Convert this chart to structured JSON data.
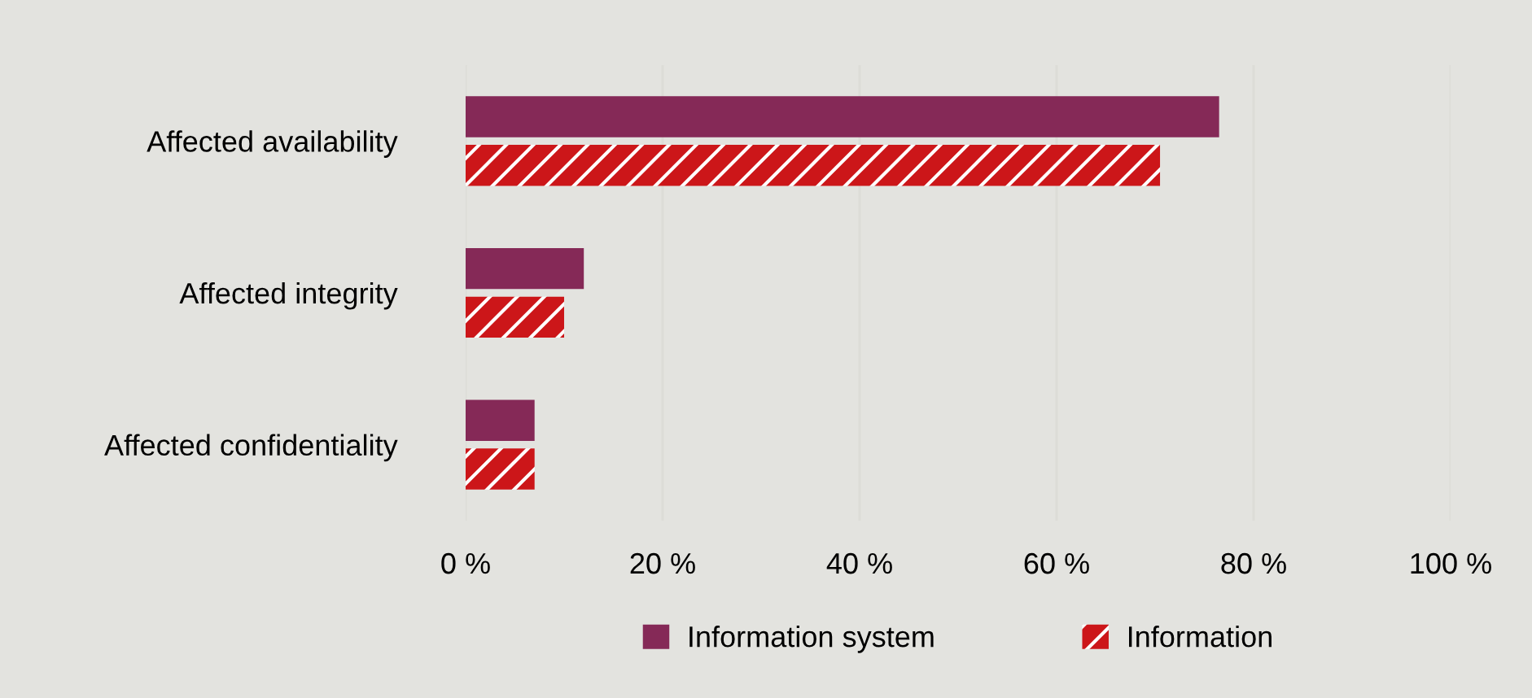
{
  "chart_data": {
    "type": "bar",
    "orientation": "horizontal",
    "categories": [
      "Affected availability",
      "Affected integrity",
      "Affected confidentiality"
    ],
    "series": [
      {
        "name": "Information system",
        "color": "#852957",
        "values": [
          76.5,
          12,
          7
        ]
      },
      {
        "name": "Information",
        "color": "#cc1619",
        "values": [
          70.5,
          10,
          7
        ]
      }
    ],
    "xlim": [
      0,
      100
    ],
    "xticks": [
      {
        "value": 0,
        "label": "0 %"
      },
      {
        "value": 20,
        "label": "20 %"
      },
      {
        "value": 40,
        "label": "40 %"
      },
      {
        "value": 60,
        "label": "60 %"
      },
      {
        "value": 80,
        "label": "80 %"
      },
      {
        "value": 100,
        "label": "100 %"
      }
    ],
    "grid": "x",
    "legend": "bottom"
  }
}
